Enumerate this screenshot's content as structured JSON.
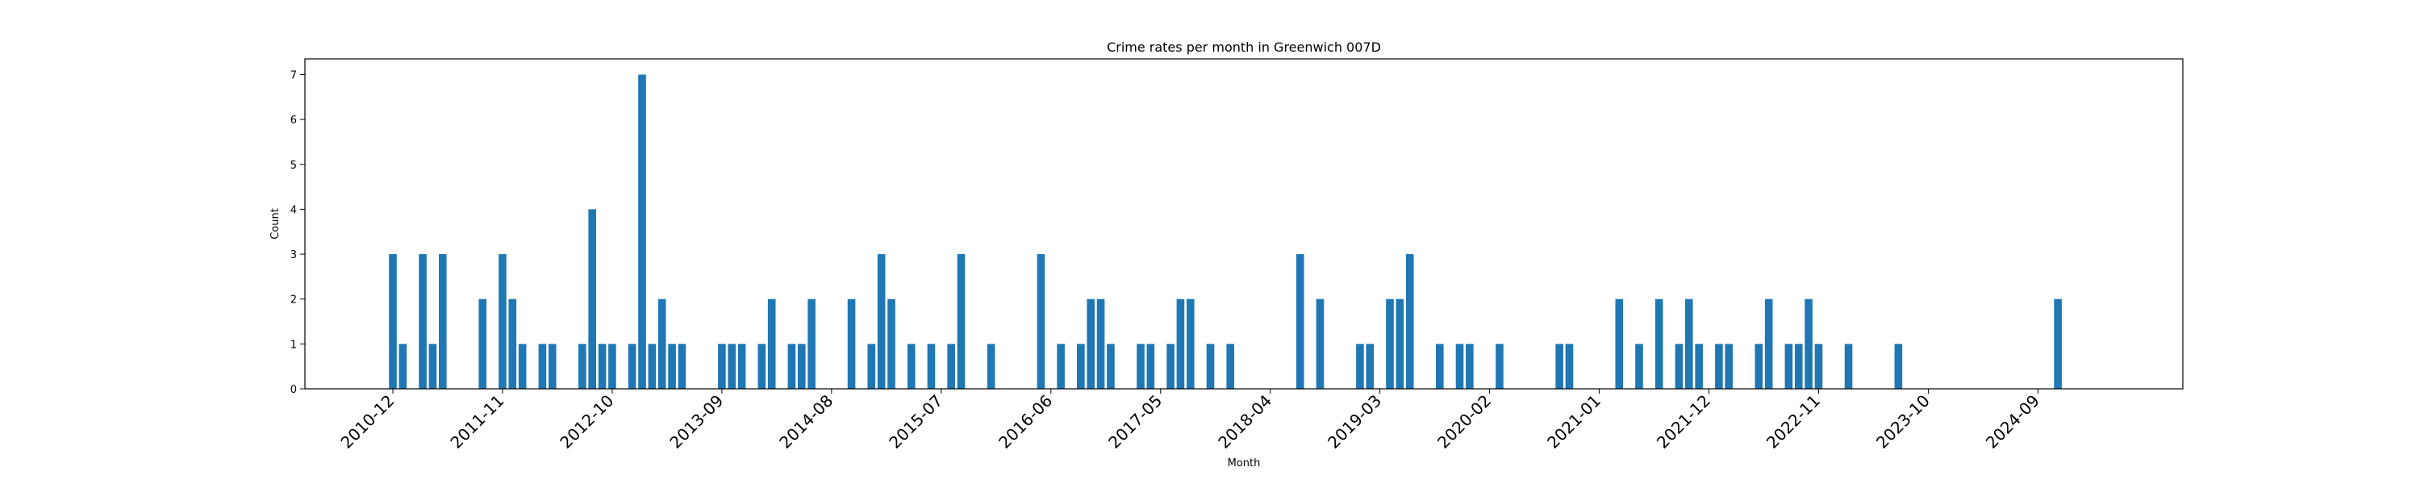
{
  "chart_data": {
    "type": "bar",
    "title": "Crime rates per month in Greenwich 007D",
    "xlabel": "Month",
    "ylabel": "Count",
    "ylim": [
      0,
      7.35
    ],
    "yticks": [
      0,
      1,
      2,
      3,
      4,
      5,
      6,
      7
    ],
    "xticks": [
      "2010-12",
      "2011-11",
      "2012-10",
      "2013-09",
      "2014-08",
      "2015-07",
      "2016-06",
      "2017-05",
      "2018-04",
      "2019-03",
      "2020-02",
      "2021-01",
      "2021-12",
      "2022-11",
      "2023-10",
      "2024-09"
    ],
    "bar_color": "#1f77b4",
    "grid": false,
    "x": [
      "2010-12",
      "2011-01",
      "2011-03",
      "2011-04",
      "2011-05",
      "2011-09",
      "2011-11",
      "2011-12",
      "2012-01",
      "2012-03",
      "2012-04",
      "2012-07",
      "2012-08",
      "2012-09",
      "2012-10",
      "2012-12",
      "2013-01",
      "2013-02",
      "2013-03",
      "2013-04",
      "2013-05",
      "2013-09",
      "2013-10",
      "2013-11",
      "2014-01",
      "2014-02",
      "2014-04",
      "2014-05",
      "2014-06",
      "2014-10",
      "2014-12",
      "2015-01",
      "2015-02",
      "2015-04",
      "2015-06",
      "2015-08",
      "2015-09",
      "2015-12",
      "2016-05",
      "2016-07",
      "2016-09",
      "2016-10",
      "2016-11",
      "2016-12",
      "2017-03",
      "2017-04",
      "2017-06",
      "2017-07",
      "2017-08",
      "2017-10",
      "2017-12",
      "2018-07",
      "2018-09",
      "2019-01",
      "2019-02",
      "2019-04",
      "2019-05",
      "2019-06",
      "2019-09",
      "2019-11",
      "2019-12",
      "2020-03",
      "2020-09",
      "2020-10",
      "2021-03",
      "2021-05",
      "2021-07",
      "2021-09",
      "2021-10",
      "2021-11",
      "2022-01",
      "2022-02",
      "2022-05",
      "2022-06",
      "2022-08",
      "2022-09",
      "2022-10",
      "2022-11",
      "2023-02",
      "2023-07",
      "2024-11"
    ],
    "values": [
      3,
      1,
      3,
      1,
      3,
      2,
      3,
      2,
      1,
      1,
      1,
      1,
      4,
      1,
      1,
      1,
      7,
      1,
      2,
      1,
      1,
      1,
      1,
      1,
      1,
      2,
      1,
      1,
      2,
      2,
      1,
      3,
      2,
      1,
      1,
      1,
      3,
      1,
      3,
      1,
      1,
      2,
      2,
      1,
      1,
      1,
      1,
      2,
      2,
      1,
      1,
      3,
      2,
      1,
      1,
      2,
      2,
      3,
      1,
      1,
      1,
      1,
      1,
      1,
      2,
      1,
      2,
      1,
      2,
      1,
      1,
      1,
      1,
      2,
      1,
      1,
      2,
      1,
      1,
      1,
      2
    ]
  }
}
